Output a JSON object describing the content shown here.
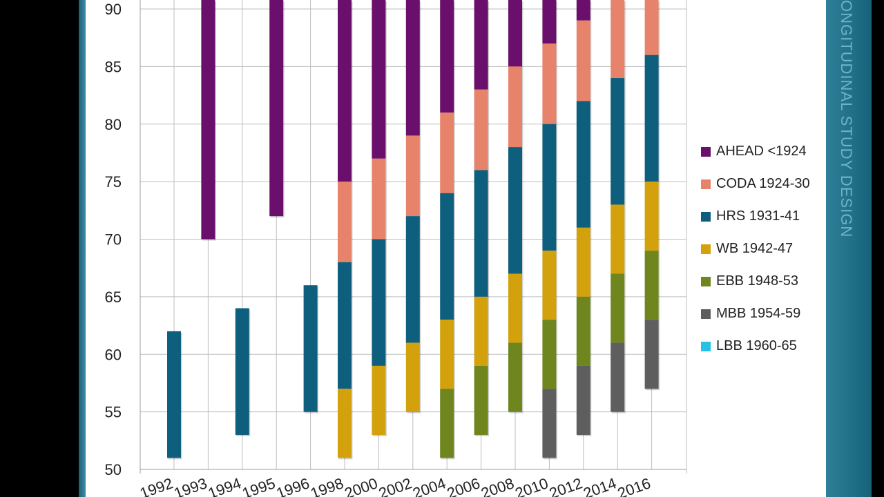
{
  "slide": {
    "side_title": "ONGITUDINAL STUDY DESIGN"
  },
  "chart_data": {
    "type": "bar",
    "ylim": [
      50,
      90
    ],
    "yticks": [
      50,
      55,
      60,
      65,
      70,
      75,
      80,
      85,
      90
    ],
    "categories": [
      "1992",
      "1993",
      "1994",
      "1995",
      "1996",
      "1998",
      "2000",
      "2002",
      "2004",
      "2006",
      "2008",
      "2010",
      "2012",
      "2014",
      "2016"
    ],
    "grid": true,
    "legend_position": "right",
    "series": [
      {
        "name": "AHEAD <1924",
        "color": "#6a0f6b",
        "ranges": [
          null,
          [
            70,
            90
          ],
          null,
          [
            72,
            90
          ],
          null,
          [
            75,
            90
          ],
          [
            77,
            90
          ],
          [
            79,
            90
          ],
          [
            81,
            90
          ],
          [
            83,
            90
          ],
          [
            85,
            90
          ],
          [
            87,
            90
          ],
          [
            89,
            90
          ],
          null,
          null
        ]
      },
      {
        "name": "CODA 1924-30",
        "color": "#e8836b",
        "ranges": [
          null,
          null,
          null,
          null,
          null,
          [
            68,
            75
          ],
          [
            70,
            77
          ],
          [
            72,
            79
          ],
          [
            74,
            81
          ],
          [
            76,
            83
          ],
          [
            78,
            85
          ],
          [
            80,
            87
          ],
          [
            82,
            89
          ],
          [
            84,
            90
          ],
          [
            86,
            90
          ]
        ]
      },
      {
        "name": "HRS 1931-41",
        "color": "#0e5f7d",
        "ranges": [
          [
            51,
            62
          ],
          null,
          [
            53,
            64
          ],
          null,
          [
            55,
            66
          ],
          [
            57,
            68
          ],
          [
            59,
            70
          ],
          [
            61,
            72
          ],
          [
            63,
            74
          ],
          [
            65,
            76
          ],
          [
            67,
            78
          ],
          [
            69,
            80
          ],
          [
            71,
            82
          ],
          [
            73,
            84
          ],
          [
            75,
            86
          ]
        ]
      },
      {
        "name": "WB 1942-47",
        "color": "#d3a10c",
        "ranges": [
          null,
          null,
          null,
          null,
          null,
          [
            51,
            57
          ],
          [
            53,
            59
          ],
          [
            55,
            61
          ],
          [
            57,
            63
          ],
          [
            59,
            65
          ],
          [
            61,
            67
          ],
          [
            63,
            69
          ],
          [
            65,
            71
          ],
          [
            67,
            73
          ],
          [
            69,
            75
          ]
        ]
      },
      {
        "name": "EBB 1948-53",
        "color": "#6f861f",
        "ranges": [
          null,
          null,
          null,
          null,
          null,
          null,
          null,
          null,
          [
            51,
            57
          ],
          [
            53,
            59
          ],
          [
            55,
            61
          ],
          [
            57,
            63
          ],
          [
            59,
            65
          ],
          [
            61,
            67
          ],
          [
            63,
            69
          ]
        ]
      },
      {
        "name": "MBB 1954-59",
        "color": "#5e5e5e",
        "ranges": [
          null,
          null,
          null,
          null,
          null,
          null,
          null,
          null,
          null,
          null,
          null,
          [
            51,
            57
          ],
          [
            53,
            59
          ],
          [
            55,
            61
          ],
          [
            57,
            63
          ]
        ]
      },
      {
        "name": "LBB 1960-65",
        "color": "#27c1e8",
        "ranges": [
          null,
          null,
          null,
          null,
          null,
          null,
          null,
          null,
          null,
          null,
          null,
          null,
          null,
          null,
          null
        ]
      }
    ]
  }
}
